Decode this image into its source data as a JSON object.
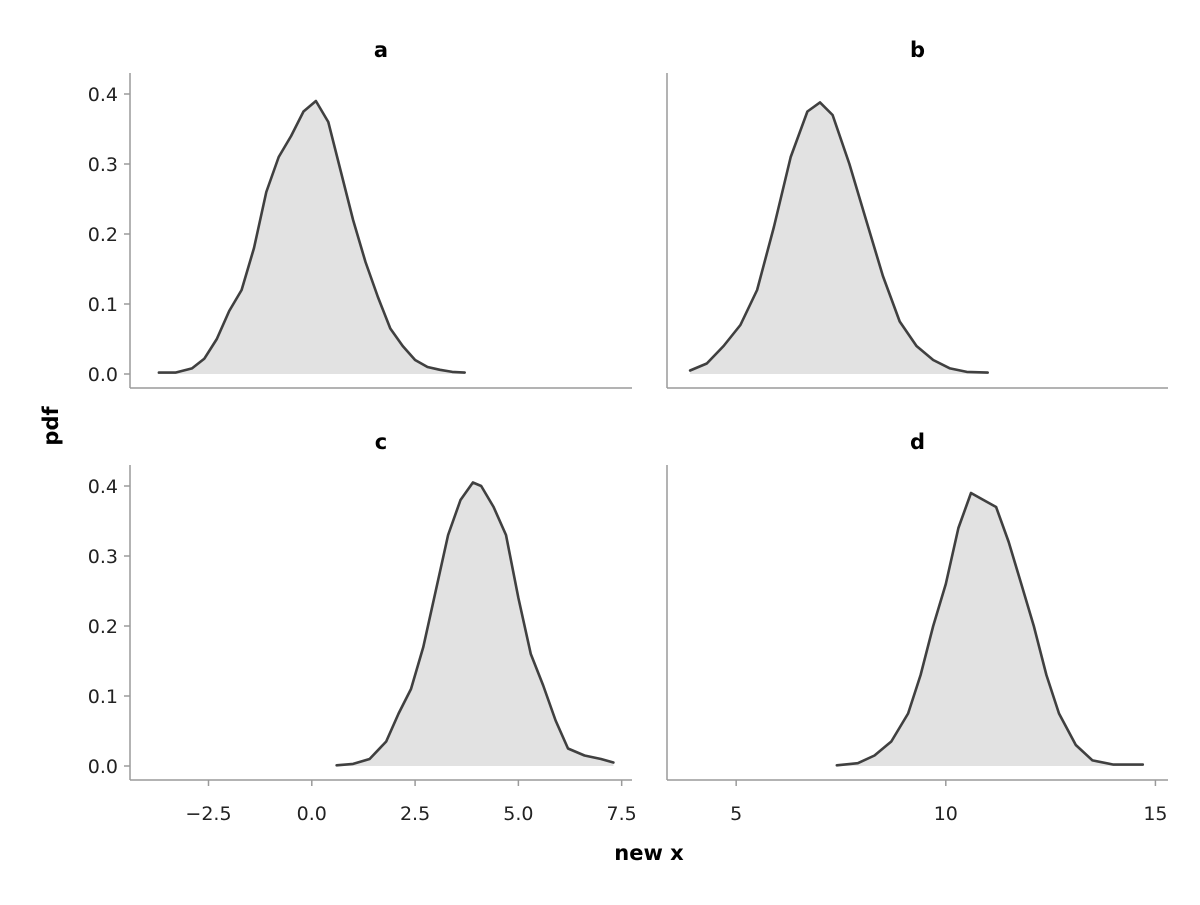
{
  "chart_data": {
    "type": "area",
    "xlabel": "new x",
    "ylabel": "pdf",
    "line_color": "#404040",
    "fill_color": "#e2e2e2",
    "axis_color": "#9a9a9a",
    "grid": false,
    "legend": "none",
    "yticks": [
      0.0,
      0.1,
      0.2,
      0.3,
      0.4
    ],
    "ytick_labels": [
      "0.0",
      "0.1",
      "0.2",
      "0.3",
      "0.4"
    ],
    "ylim": [
      -0.02,
      0.43
    ],
    "panels": [
      {
        "title": "a",
        "row": 0,
        "col": 0,
        "xlim": [
          -4.4,
          7.75
        ],
        "x": [
          -3.7,
          -3.3,
          -2.9,
          -2.6,
          -2.3,
          -2.0,
          -1.7,
          -1.4,
          -1.1,
          -0.8,
          -0.5,
          -0.2,
          0.1,
          0.4,
          0.7,
          1.0,
          1.3,
          1.6,
          1.9,
          2.2,
          2.5,
          2.8,
          3.1,
          3.4,
          3.7
        ],
        "y": [
          0.002,
          0.002,
          0.008,
          0.022,
          0.05,
          0.09,
          0.12,
          0.18,
          0.26,
          0.31,
          0.34,
          0.375,
          0.39,
          0.36,
          0.29,
          0.22,
          0.16,
          0.11,
          0.065,
          0.04,
          0.02,
          0.01,
          0.006,
          0.003,
          0.002
        ]
      },
      {
        "title": "b",
        "row": 0,
        "col": 1,
        "xlim": [
          3.35,
          15.3
        ],
        "x": [
          3.9,
          4.3,
          4.7,
          5.1,
          5.5,
          5.9,
          6.3,
          6.7,
          7.0,
          7.3,
          7.7,
          8.1,
          8.5,
          8.9,
          9.3,
          9.7,
          10.1,
          10.5,
          11.0
        ],
        "y": [
          0.005,
          0.015,
          0.04,
          0.07,
          0.12,
          0.21,
          0.31,
          0.375,
          0.388,
          0.37,
          0.3,
          0.22,
          0.14,
          0.075,
          0.04,
          0.02,
          0.008,
          0.003,
          0.002
        ]
      },
      {
        "title": "c",
        "row": 1,
        "col": 0,
        "xlim": [
          -4.4,
          7.75
        ],
        "x": [
          0.6,
          1.0,
          1.4,
          1.8,
          2.1,
          2.4,
          2.7,
          3.0,
          3.3,
          3.6,
          3.9,
          4.1,
          4.4,
          4.7,
          5.0,
          5.3,
          5.6,
          5.9,
          6.2,
          6.6,
          7.0,
          7.3
        ],
        "y": [
          0.001,
          0.003,
          0.01,
          0.035,
          0.075,
          0.11,
          0.17,
          0.25,
          0.33,
          0.38,
          0.405,
          0.4,
          0.37,
          0.33,
          0.24,
          0.16,
          0.115,
          0.065,
          0.025,
          0.015,
          0.01,
          0.005
        ]
      },
      {
        "title": "d",
        "row": 1,
        "col": 1,
        "xlim": [
          3.35,
          15.3
        ],
        "x": [
          7.4,
          7.9,
          8.3,
          8.7,
          9.1,
          9.4,
          9.7,
          10.0,
          10.3,
          10.6,
          10.9,
          11.2,
          11.5,
          11.8,
          12.1,
          12.4,
          12.7,
          13.1,
          13.5,
          14.0,
          14.7
        ],
        "y": [
          0.001,
          0.004,
          0.015,
          0.035,
          0.075,
          0.13,
          0.2,
          0.26,
          0.34,
          0.39,
          0.38,
          0.37,
          0.32,
          0.26,
          0.2,
          0.13,
          0.075,
          0.03,
          0.008,
          0.002,
          0.002
        ]
      }
    ],
    "xticks_left": [
      -2.5,
      0.0,
      2.5,
      5.0,
      7.5
    ],
    "xtick_labels_left": [
      "−2.5",
      "0.0",
      "2.5",
      "5.0",
      "7.5"
    ],
    "xticks_right": [
      5,
      10,
      15
    ],
    "xtick_labels_right": [
      "5",
      "10",
      "15"
    ]
  }
}
